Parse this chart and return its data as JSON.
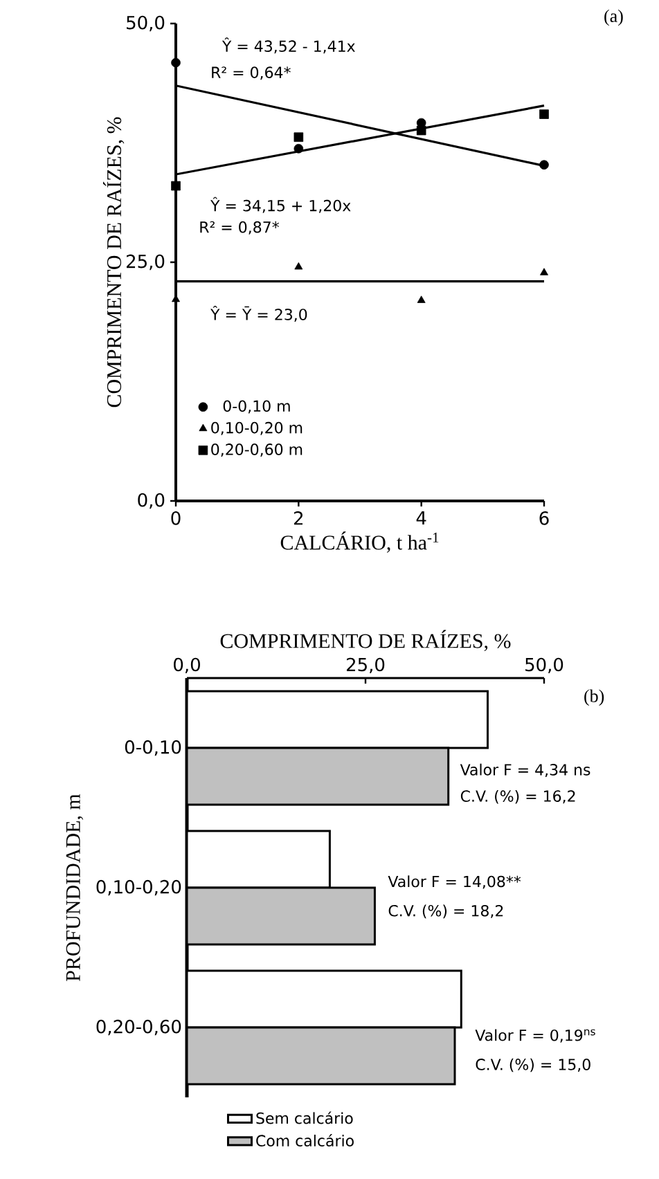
{
  "chart_data": [
    {
      "type": "line",
      "xlabel": "CALCÁRIO, t ha$^{-1}$",
      "ylabel": "COMPRIMENTO DE RAÍZES, %",
      "xlim": [
        0,
        6
      ],
      "ylim": [
        0,
        50
      ],
      "xticks": [
        0,
        2,
        4,
        6
      ],
      "yticks": [
        {
          "value": 0,
          "label": "0,0"
        },
        {
          "value": 25,
          "label": "25,0"
        },
        {
          "value": 50,
          "label": "50,0"
        }
      ],
      "legend": "bottom left",
      "series": [
        {
          "name": "0-0,10 m",
          "type": "scatter",
          "marker": "circle",
          "color": "#000000",
          "x": [
            0,
            2,
            4,
            6
          ],
          "values": [
            45.9,
            36.9,
            39.6,
            35.2
          ]
        },
        {
          "name": "0,10-0,20 m",
          "type": "scatter",
          "marker": "triangle",
          "color": "#000000",
          "x": [
            0,
            2,
            4,
            6
          ],
          "values": [
            21.1,
            24.5,
            21.0,
            23.9
          ]
        },
        {
          "name": "0,20-0,60 m",
          "type": "scatter",
          "marker": "square",
          "color": "#000000",
          "x": [
            0,
            2,
            4,
            6
          ],
          "values": [
            33.0,
            38.1,
            38.8,
            40.5
          ]
        },
        {
          "type": "line",
          "marker": "none",
          "color": "#000000",
          "x": [
            0,
            6
          ],
          "values": [
            43.5,
            35.1
          ]
        },
        {
          "type": "line",
          "marker": "none",
          "color": "#000000",
          "x": [
            0,
            6
          ],
          "values": [
            34.2,
            41.4
          ]
        },
        {
          "type": "line",
          "marker": "none",
          "color": "#000000",
          "x": [
            0,
            6
          ],
          "values": [
            23.0,
            23.0
          ]
        }
      ],
      "annotations": [
        "Ŷ = 43,52 - 1,41x",
        "R² = 0,64*",
        "Ŷ = 34,15 + 1,20x",
        "R² = 0,87*",
        "Ŷ = Ȳ = 23,0",
        "(a)"
      ]
    },
    {
      "type": "bar",
      "orientation": "horizontal",
      "xlabel": "COMPRIMENTO DE RAÍZES, %",
      "ylabel": "PROFUNDIDADE, m",
      "categories": [
        "0-0,10",
        "0,10-0,20",
        "0,20-0,60"
      ],
      "xlim": [
        0,
        50
      ],
      "xticks": [
        {
          "value": 0,
          "label": "0,0"
        },
        {
          "value": 25,
          "label": "25,0"
        },
        {
          "value": 50,
          "label": "50,0"
        }
      ],
      "legend": "bottom",
      "series": [
        {
          "name": "Sem calcário",
          "color": "#ffffff",
          "values": [
            42.1,
            20.0,
            38.4
          ]
        },
        {
          "name": "Com calcário",
          "color": "#c0c0c0",
          "values": [
            36.6,
            26.3,
            37.5
          ]
        }
      ],
      "annotations": [
        "Valor F = 4,34 ns",
        "C.V. (%) = 16,2",
        "Valor F = 14,08**",
        "C.V. (%) = 18,2",
        "Valor F = 0,19$^{ns}$",
        "C.V. (%) = 15,0",
        "(b)"
      ]
    }
  ]
}
